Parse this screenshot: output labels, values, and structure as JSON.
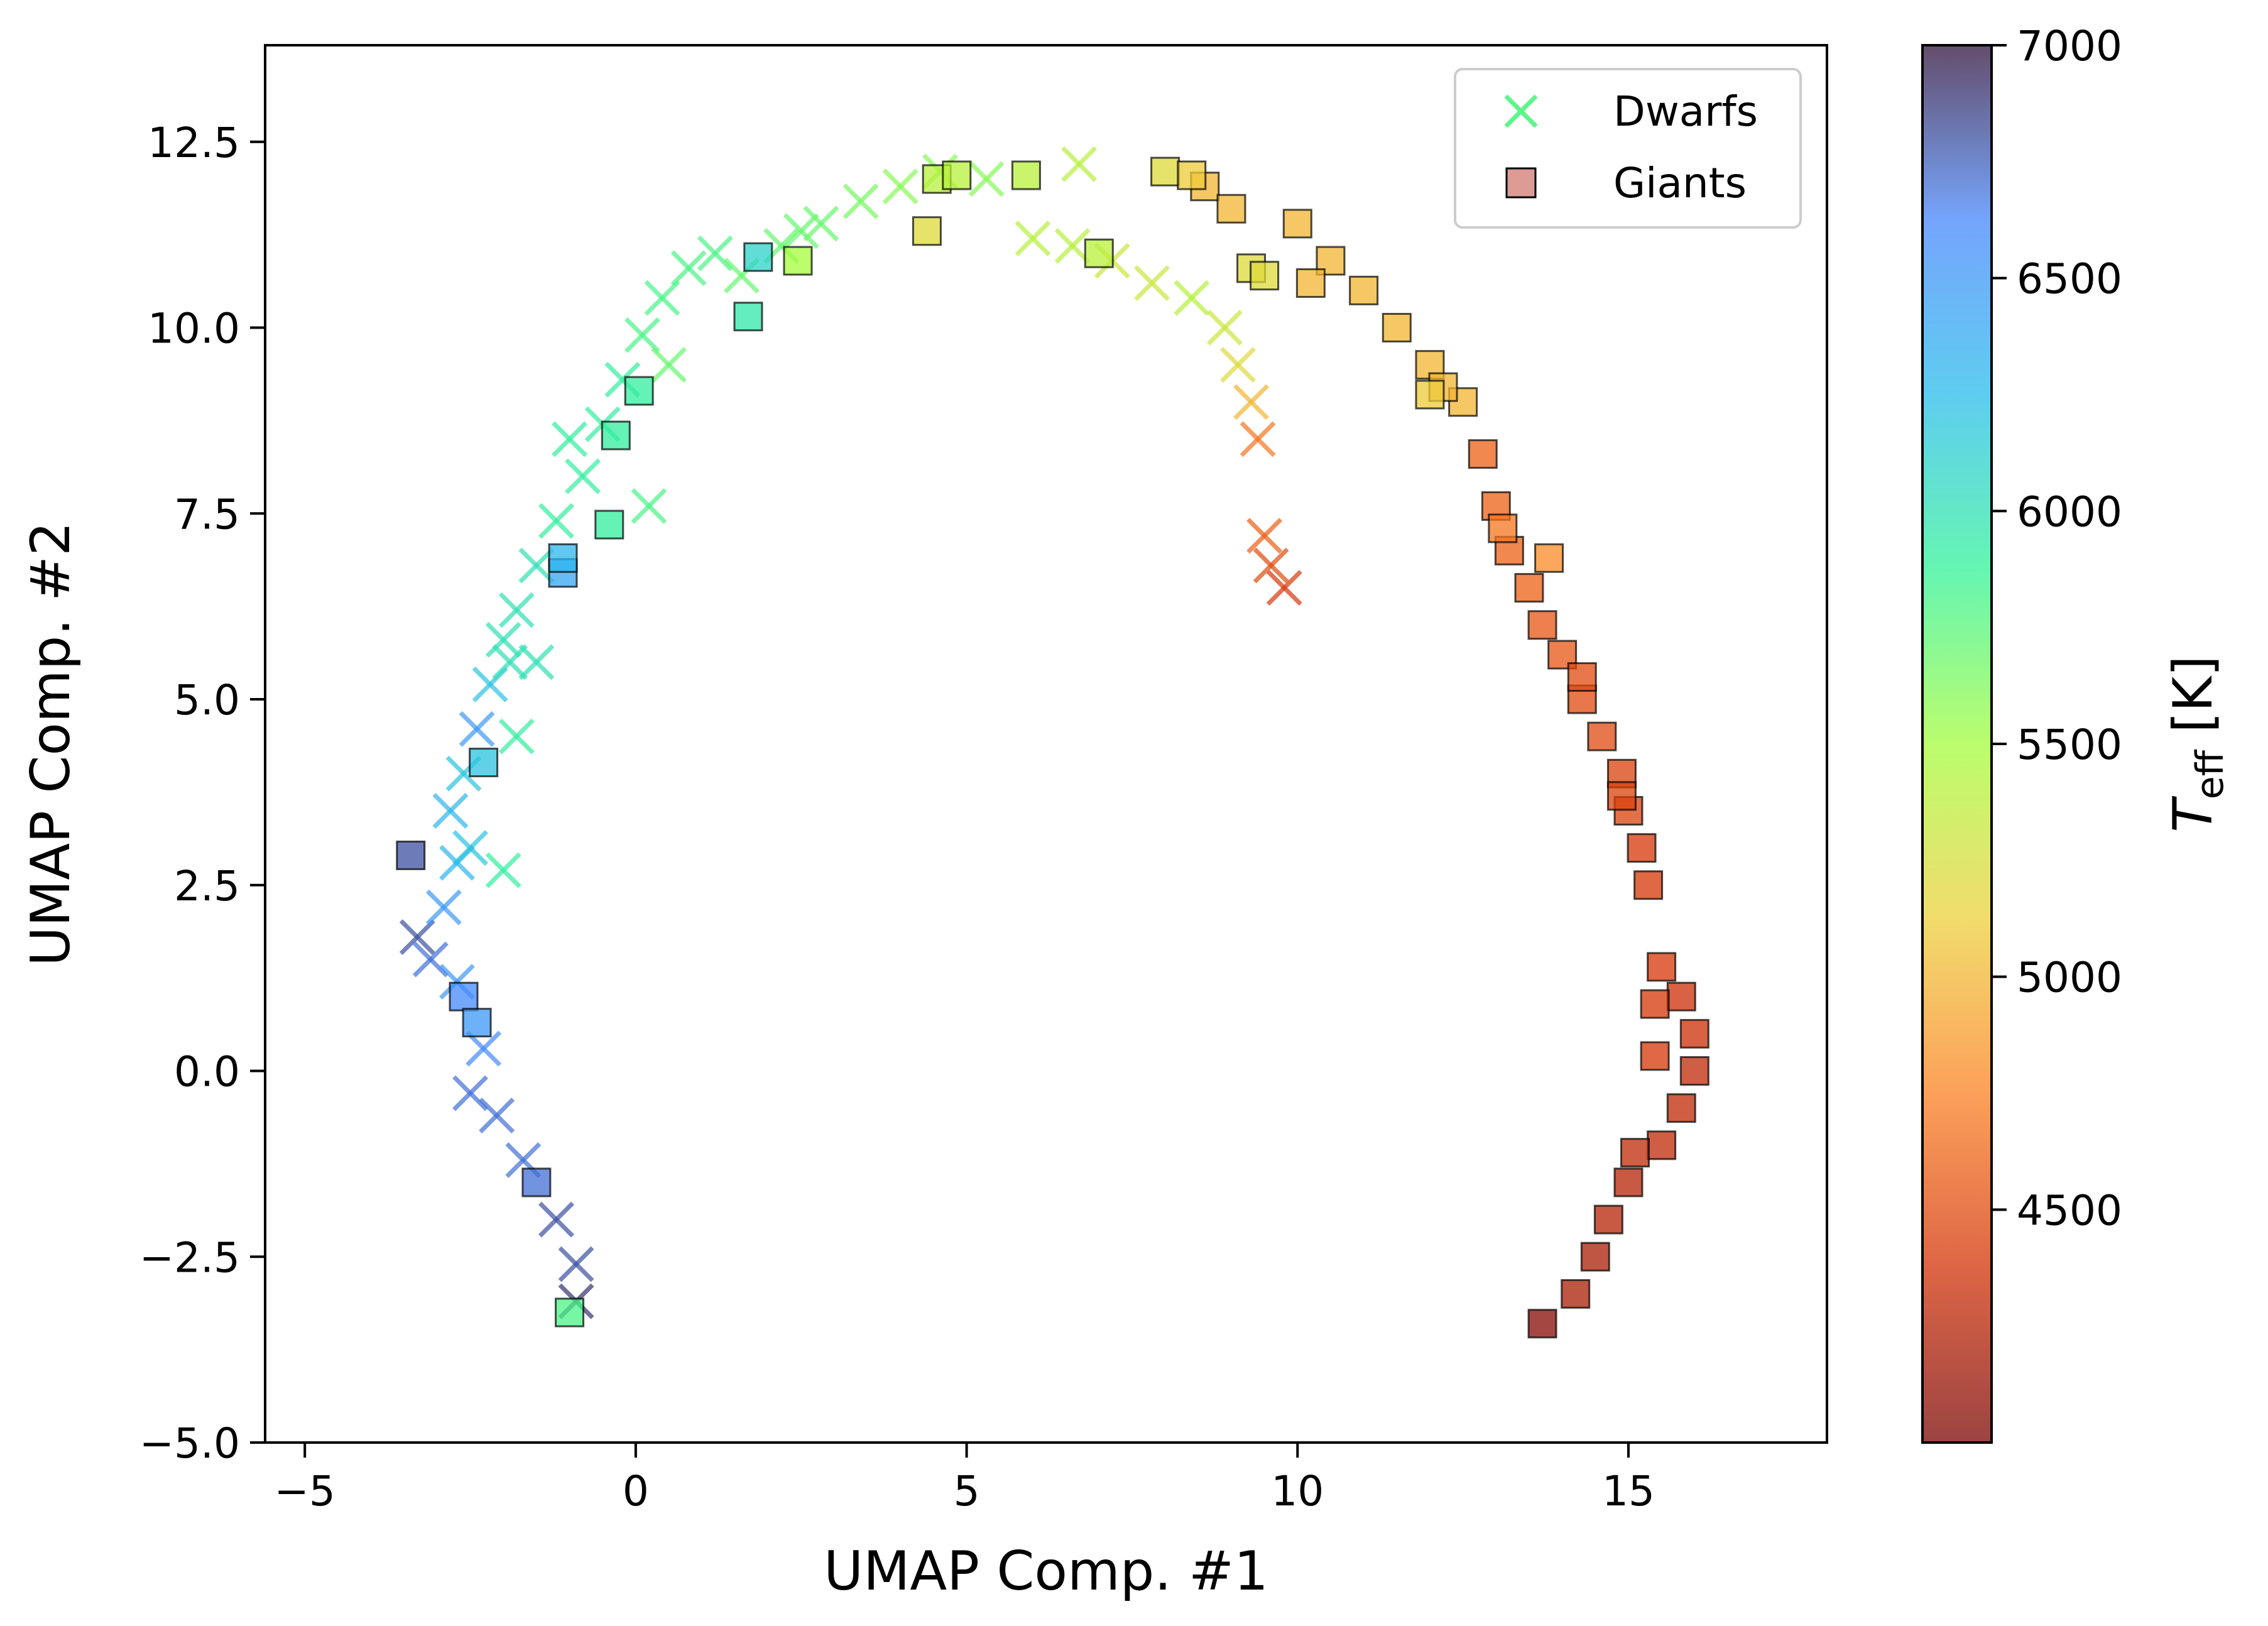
{
  "chart_data": {
    "type": "scatter",
    "xlabel": "UMAP Comp. #1",
    "ylabel": "UMAP Comp. #2",
    "xlim": [
      -5.6,
      18.0
    ],
    "ylim": [
      -5.0,
      13.8
    ],
    "x_ticks": [
      -5,
      0,
      5,
      10,
      15
    ],
    "y_ticks": [
      -5.0,
      -2.5,
      0.0,
      2.5,
      5.0,
      7.5,
      10.0,
      12.5
    ],
    "x_tick_labels": [
      "−5",
      "0",
      "5",
      "10",
      "15"
    ],
    "y_tick_labels": [
      "−5.0",
      "−2.5",
      "0.0",
      "2.5",
      "5.0",
      "7.5",
      "10.0",
      "12.5"
    ],
    "grid": false,
    "legend_position": "top-right",
    "colorbar": {
      "label": "T_eff [K]",
      "label_main": "T",
      "label_sub": "eff",
      "label_unit": " [K]",
      "range": [
        4000,
        7000
      ],
      "ticks": [
        4500,
        5000,
        5500,
        6000,
        6500,
        7000
      ],
      "tick_labels": [
        "4500",
        "5000",
        "5500",
        "6000",
        "6500",
        "7000"
      ],
      "colormap": "turbo_r",
      "colors": [
        "#7a0403",
        "#d23105",
        "#fb8022",
        "#edd03a",
        "#a4fc3c",
        "#32f298",
        "#28bceb",
        "#4686fb",
        "#30123b"
      ]
    },
    "series": [
      {
        "name": "Dwarfs",
        "marker": "x",
        "legend_color": "#5ef58a",
        "points": [
          [
            -3.3,
            1.8,
            6800
          ],
          [
            -3.1,
            1.5,
            6700
          ],
          [
            -2.9,
            2.2,
            6500
          ],
          [
            -2.7,
            2.8,
            6300
          ],
          [
            -2.8,
            3.5,
            6300
          ],
          [
            -2.6,
            4.0,
            6200
          ],
          [
            -2.4,
            4.6,
            6500
          ],
          [
            -2.2,
            5.2,
            6200
          ],
          [
            -2.0,
            5.8,
            6000
          ],
          [
            -1.8,
            6.2,
            6000
          ],
          [
            -1.5,
            6.8,
            6000
          ],
          [
            -1.2,
            7.4,
            5900
          ],
          [
            -0.8,
            8.0,
            5900
          ],
          [
            -0.5,
            8.7,
            5900
          ],
          [
            -0.2,
            9.3,
            5900
          ],
          [
            0.1,
            9.9,
            5800
          ],
          [
            0.4,
            10.4,
            5800
          ],
          [
            0.8,
            10.8,
            5800
          ],
          [
            1.2,
            11.0,
            5800
          ],
          [
            1.6,
            10.7,
            5700
          ],
          [
            2.2,
            11.1,
            5700
          ],
          [
            2.8,
            11.4,
            5700
          ],
          [
            3.4,
            11.7,
            5650
          ],
          [
            4.0,
            11.9,
            5600
          ],
          [
            4.6,
            12.1,
            5600
          ],
          [
            5.3,
            12.0,
            5600
          ],
          [
            6.0,
            11.2,
            5400
          ],
          [
            6.6,
            11.1,
            5400
          ],
          [
            7.2,
            10.9,
            5300
          ],
          [
            7.8,
            10.6,
            5300
          ],
          [
            8.4,
            10.4,
            5400
          ],
          [
            8.9,
            10.0,
            5300
          ],
          [
            9.1,
            9.5,
            5200
          ],
          [
            9.3,
            9.0,
            5000
          ],
          [
            9.4,
            8.5,
            4700
          ],
          [
            9.5,
            7.2,
            4600
          ],
          [
            9.6,
            6.8,
            4500
          ],
          [
            9.8,
            6.5,
            4400
          ],
          [
            0.2,
            7.6,
            5800
          ],
          [
            -1.8,
            4.5,
            5900
          ],
          [
            -2.0,
            2.7,
            5900
          ],
          [
            -2.3,
            0.3,
            6600
          ],
          [
            -2.1,
            -0.6,
            6700
          ],
          [
            -1.7,
            -1.2,
            6700
          ],
          [
            -1.2,
            -2.0,
            6800
          ],
          [
            -0.9,
            -2.6,
            6800
          ],
          [
            -0.9,
            -3.1,
            6900
          ],
          [
            -1.9,
            5.5,
            6000
          ],
          [
            -2.5,
            3.0,
            6200
          ],
          [
            -2.7,
            1.2,
            6500
          ],
          [
            -2.5,
            -0.3,
            6700
          ],
          [
            6.7,
            12.2,
            5400
          ],
          [
            -1.5,
            5.5,
            6000
          ],
          [
            0.5,
            9.5,
            5700
          ],
          [
            -1.0,
            8.5,
            5900
          ],
          [
            2.5,
            11.3,
            5700
          ]
        ]
      },
      {
        "name": "Giants",
        "marker": "s",
        "legend_color": "#d07a70",
        "points": [
          [
            -3.4,
            2.9,
            6800
          ],
          [
            -2.6,
            1.0,
            6600
          ],
          [
            -2.4,
            0.65,
            6500
          ],
          [
            -1.5,
            -1.5,
            6700
          ],
          [
            -1.0,
            -3.25,
            5800
          ],
          [
            -1.1,
            6.7,
            6400
          ],
          [
            -1.1,
            6.9,
            6300
          ],
          [
            -0.4,
            7.35,
            5900
          ],
          [
            -0.3,
            8.55,
            5900
          ],
          [
            0.05,
            9.15,
            5900
          ],
          [
            1.7,
            10.15,
            5950
          ],
          [
            1.85,
            10.95,
            6100
          ],
          [
            2.45,
            10.9,
            5500
          ],
          [
            4.4,
            11.3,
            5200
          ],
          [
            4.55,
            12.0,
            5400
          ],
          [
            4.85,
            12.05,
            5400
          ],
          [
            5.9,
            12.05,
            5400
          ],
          [
            7.0,
            11.0,
            5400
          ],
          [
            -2.3,
            4.15,
            6200
          ],
          [
            8.0,
            12.1,
            5200
          ],
          [
            8.6,
            11.9,
            5000
          ],
          [
            9.0,
            11.6,
            5000
          ],
          [
            9.3,
            10.8,
            5200
          ],
          [
            9.5,
            10.7,
            5200
          ],
          [
            10.0,
            11.4,
            5000
          ],
          [
            10.5,
            10.9,
            5000
          ],
          [
            11.0,
            10.5,
            5000
          ],
          [
            11.5,
            10.0,
            5000
          ],
          [
            12.0,
            9.5,
            5000
          ],
          [
            12.5,
            9.0,
            5000
          ],
          [
            12.8,
            8.3,
            4600
          ],
          [
            13.0,
            7.6,
            4600
          ],
          [
            13.2,
            7.0,
            4600
          ],
          [
            13.5,
            6.5,
            4600
          ],
          [
            13.7,
            6.0,
            4550
          ],
          [
            14.0,
            5.6,
            4550
          ],
          [
            14.3,
            5.0,
            4500
          ],
          [
            14.6,
            4.5,
            4500
          ],
          [
            14.9,
            4.0,
            4450
          ],
          [
            15.0,
            3.5,
            4450
          ],
          [
            15.2,
            3.0,
            4400
          ],
          [
            15.3,
            2.5,
            4400
          ],
          [
            15.5,
            1.4,
            4400
          ],
          [
            15.8,
            1.0,
            4350
          ],
          [
            16.0,
            0.5,
            4350
          ],
          [
            16.0,
            0.0,
            4300
          ],
          [
            15.8,
            -0.5,
            4300
          ],
          [
            15.5,
            -1.0,
            4300
          ],
          [
            15.0,
            -1.5,
            4250
          ],
          [
            14.7,
            -2.0,
            4250
          ],
          [
            14.5,
            -2.5,
            4200
          ],
          [
            14.2,
            -3.0,
            4200
          ],
          [
            13.7,
            -3.4,
            4050
          ],
          [
            12.2,
            9.2,
            5000
          ],
          [
            12.0,
            9.1,
            5100
          ],
          [
            13.8,
            6.9,
            4800
          ],
          [
            15.4,
            0.9,
            4400
          ],
          [
            15.4,
            0.2,
            4400
          ],
          [
            15.1,
            -1.1,
            4300
          ],
          [
            13.1,
            7.3,
            4700
          ],
          [
            14.9,
            3.7,
            4450
          ],
          [
            8.4,
            12.05,
            5100
          ],
          [
            10.2,
            10.6,
            5000
          ],
          [
            14.3,
            5.3,
            4500
          ]
        ]
      }
    ]
  }
}
